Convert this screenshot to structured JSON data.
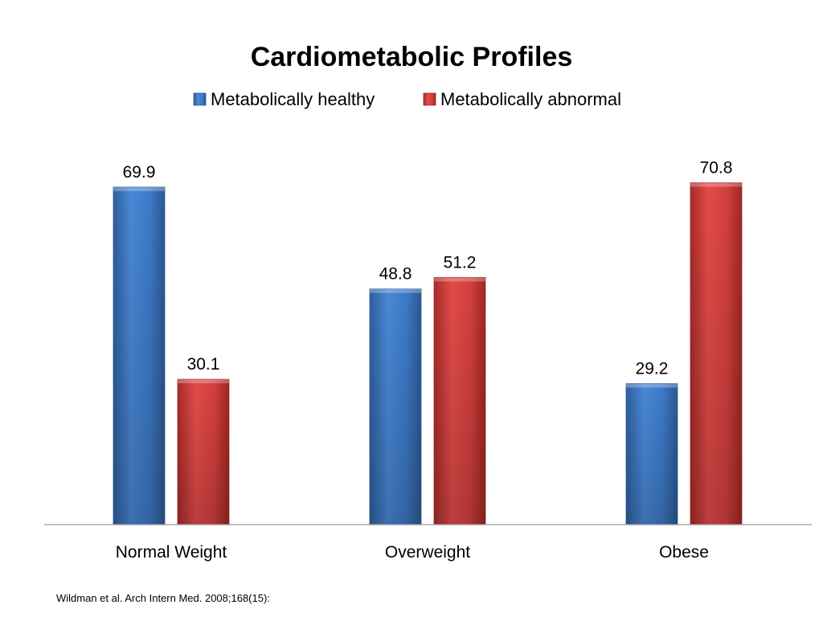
{
  "chart_data": {
    "type": "bar",
    "title": "Cardiometabolic Profiles",
    "categories": [
      "Normal Weight",
      "Overweight",
      "Obese"
    ],
    "series": [
      {
        "name": "Metabolically healthy",
        "values": [
          69.9,
          48.8,
          29.2
        ],
        "color": "#3f7fd0"
      },
      {
        "name": "Metabolically abnormal",
        "values": [
          30.1,
          51.2,
          70.8
        ],
        "color": "#d23f3d"
      }
    ],
    "xlabel": "",
    "ylabel": "",
    "ylim": [
      0,
      80
    ],
    "grid": false,
    "legend": "top"
  },
  "footer": {
    "source": "Wildman et al. Arch Intern Med. 2008;168(15):"
  }
}
